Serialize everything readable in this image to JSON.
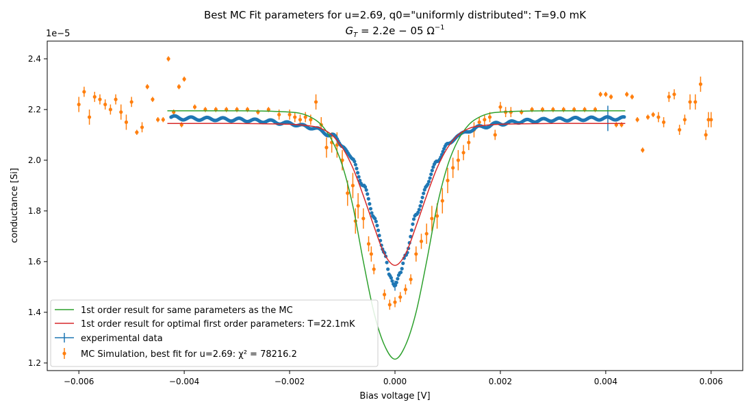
{
  "chart_data": {
    "type": "scatter",
    "title": "Best MC Fit parameters for u=2.69, q0=\"uniformly distributed\":  T=9.0 mK",
    "subtitle_prefix": "G",
    "subtitle_sub": "T",
    "subtitle_mid": " = 2.2e − 05 Ω",
    "subtitle_sup": "−1",
    "xlabel": "Bias voltage [V]",
    "ylabel": "conductance [Si]",
    "y_offset_label": "1e−5",
    "xlim": [
      -0.0066,
      0.0066
    ],
    "ylim": [
      1.17e-05,
      2.47e-05
    ],
    "grid": false,
    "legend_position": "lower-left",
    "x_ticks": [
      -0.006,
      -0.004,
      -0.002,
      0.0,
      0.002,
      0.004,
      0.006
    ],
    "x_tick_labels": [
      "−0.006",
      "−0.004",
      "−0.002",
      "0.000",
      "0.002",
      "0.004",
      "0.006"
    ],
    "y_ticks": [
      1.2e-05,
      1.4e-05,
      1.6e-05,
      1.8e-05,
      2e-05,
      2.2e-05,
      2.4e-05
    ],
    "y_tick_labels": [
      "1.2",
      "1.4",
      "1.6",
      "1.8",
      "2.0",
      "2.2",
      "2.4"
    ],
    "colors": {
      "experimental": "#1f77b4",
      "mc": "#ff7f0e",
      "first_order_same": "#2ca02c",
      "first_order_opt": "#d62728"
    },
    "series": [
      {
        "name": "1st order result for same parameters as the MC",
        "kind": "line",
        "color": "#2ca02c",
        "points": [
          [
            -0.00432,
            2.195e-05
          ],
          [
            -0.004,
            2.195e-05
          ],
          [
            -0.0035,
            2.195e-05
          ],
          [
            -0.003,
            2.195e-05
          ],
          [
            -0.0025,
            2.194e-05
          ],
          [
            -0.002,
            2.19e-05
          ],
          [
            -0.0018,
            2.185e-05
          ],
          [
            -0.0016,
            2.17e-05
          ],
          [
            -0.0014,
            2.14e-05
          ],
          [
            -0.0012,
            2.08e-05
          ],
          [
            -0.001,
            1.98e-05
          ],
          [
            -0.0008,
            1.82e-05
          ],
          [
            -0.0006,
            1.6e-05
          ],
          [
            -0.0004,
            1.4e-05
          ],
          [
            -0.0002,
            1.27e-05
          ],
          [
            0.0,
            1.215e-05
          ],
          [
            0.0002,
            1.27e-05
          ],
          [
            0.0004,
            1.4e-05
          ],
          [
            0.0006,
            1.6e-05
          ],
          [
            0.0008,
            1.82e-05
          ],
          [
            0.001,
            1.98e-05
          ],
          [
            0.0012,
            2.08e-05
          ],
          [
            0.0014,
            2.14e-05
          ],
          [
            0.0016,
            2.17e-05
          ],
          [
            0.0018,
            2.185e-05
          ],
          [
            0.002,
            2.19e-05
          ],
          [
            0.0025,
            2.194e-05
          ],
          [
            0.003,
            2.195e-05
          ],
          [
            0.0035,
            2.195e-05
          ],
          [
            0.004,
            2.195e-05
          ],
          [
            0.00437,
            2.195e-05
          ]
        ]
      },
      {
        "name": "1st order result for optimal first order parameters: T=22.1mK",
        "kind": "line",
        "color": "#d62728",
        "points": [
          [
            -0.00432,
            2.145e-05
          ],
          [
            -0.004,
            2.145e-05
          ],
          [
            -0.003,
            2.145e-05
          ],
          [
            -0.002,
            2.142e-05
          ],
          [
            -0.0016,
            2.135e-05
          ],
          [
            -0.0014,
            2.125e-05
          ],
          [
            -0.0012,
            2.1e-05
          ],
          [
            -0.001,
            2.05e-05
          ],
          [
            -0.0008,
            1.97e-05
          ],
          [
            -0.0006,
            1.86e-05
          ],
          [
            -0.0004,
            1.74e-05
          ],
          [
            -0.0002,
            1.63e-05
          ],
          [
            0.0,
            1.585e-05
          ],
          [
            0.0002,
            1.63e-05
          ],
          [
            0.0004,
            1.74e-05
          ],
          [
            0.0006,
            1.86e-05
          ],
          [
            0.0008,
            1.97e-05
          ],
          [
            0.001,
            2.05e-05
          ],
          [
            0.0012,
            2.1e-05
          ],
          [
            0.0014,
            2.125e-05
          ],
          [
            0.0016,
            2.135e-05
          ],
          [
            0.002,
            2.142e-05
          ],
          [
            0.003,
            2.145e-05
          ],
          [
            0.004,
            2.145e-05
          ],
          [
            0.00437,
            2.145e-05
          ]
        ]
      },
      {
        "name": "experimental data",
        "kind": "errorbar-dense",
        "color": "#1f77b4",
        "x_range": [
          -0.00425,
          0.00435
        ],
        "profile": [
          [
            -0.00425,
            2.17e-05
          ],
          [
            -0.004,
            2.165e-05
          ],
          [
            -0.0035,
            2.163e-05
          ],
          [
            -0.003,
            2.16e-05
          ],
          [
            -0.0025,
            2.155e-05
          ],
          [
            -0.002,
            2.145e-05
          ],
          [
            -0.0016,
            2.13e-05
          ],
          [
            -0.0012,
            2.1e-05
          ],
          [
            -0.001,
            2.06e-05
          ],
          [
            -0.0008,
            2e-05
          ],
          [
            -0.0006,
            1.9e-05
          ],
          [
            -0.0004,
            1.78e-05
          ],
          [
            -0.0002,
            1.63e-05
          ],
          [
            -0.0001,
            1.55e-05
          ],
          [
            0.0,
            1.505e-05
          ],
          [
            0.0001,
            1.55e-05
          ],
          [
            0.0002,
            1.63e-05
          ],
          [
            0.0004,
            1.78e-05
          ],
          [
            0.0006,
            1.9e-05
          ],
          [
            0.0008,
            2e-05
          ],
          [
            0.001,
            2.06e-05
          ],
          [
            0.0012,
            2.1e-05
          ],
          [
            0.0016,
            2.13e-05
          ],
          [
            0.002,
            2.145e-05
          ],
          [
            0.0025,
            2.155e-05
          ],
          [
            0.003,
            2.16e-05
          ],
          [
            0.0035,
            2.163e-05
          ],
          [
            0.004,
            2.165e-05
          ],
          [
            0.00435,
            2.165e-05
          ]
        ]
      },
      {
        "name": "MC Simulation, best fit for u=2.69:  χ² = 78216.2",
        "kind": "errorbar",
        "color": "#ff7f0e",
        "points": [
          [
            -0.006,
            2.22e-05,
            3e-07
          ],
          [
            -0.0059,
            2.27e-05,
            2e-07
          ],
          [
            -0.0058,
            2.17e-05,
            3e-07
          ],
          [
            -0.0057,
            2.25e-05,
            2e-07
          ],
          [
            -0.0056,
            2.24e-05,
            2e-07
          ],
          [
            -0.0055,
            2.22e-05,
            2e-07
          ],
          [
            -0.0054,
            2.2e-05,
            2e-07
          ],
          [
            -0.0053,
            2.24e-05,
            2e-07
          ],
          [
            -0.0052,
            2.19e-05,
            3e-07
          ],
          [
            -0.0051,
            2.15e-05,
            3e-07
          ],
          [
            -0.005,
            2.23e-05,
            2e-07
          ],
          [
            -0.0049,
            2.11e-05,
            1e-07
          ],
          [
            -0.0048,
            2.13e-05,
            2e-07
          ],
          [
            -0.0047,
            2.29e-05,
            1e-07
          ],
          [
            -0.0046,
            2.24e-05,
            1e-07
          ],
          [
            -0.0045,
            2.16e-05,
            1e-07
          ],
          [
            -0.0044,
            2.16e-05,
            1e-07
          ],
          [
            -0.0043,
            2.4e-05,
            1e-07
          ],
          [
            -0.0042,
            2.19e-05,
            1e-07
          ],
          [
            -0.0041,
            2.29e-05,
            1e-07
          ],
          [
            -0.00405,
            2.14e-05,
            1e-07
          ],
          [
            -0.004,
            2.32e-05,
            1e-07
          ],
          [
            -0.0038,
            2.21e-05,
            1e-07
          ],
          [
            -0.0036,
            2.2e-05,
            1e-07
          ],
          [
            -0.0034,
            2.2e-05,
            1e-07
          ],
          [
            -0.0032,
            2.2e-05,
            1e-07
          ],
          [
            -0.003,
            2.2e-05,
            1e-07
          ],
          [
            -0.0028,
            2.2e-05,
            1e-07
          ],
          [
            -0.0026,
            2.19e-05,
            1e-07
          ],
          [
            -0.0024,
            2.2e-05,
            1e-07
          ],
          [
            -0.0022,
            2.18e-05,
            2e-07
          ],
          [
            -0.002,
            2.18e-05,
            2e-07
          ],
          [
            -0.0019,
            2.17e-05,
            2e-07
          ],
          [
            -0.0018,
            2.16e-05,
            2e-07
          ],
          [
            -0.0017,
            2.17e-05,
            2e-07
          ],
          [
            -0.0016,
            2.16e-05,
            2e-07
          ],
          [
            -0.0015,
            2.23e-05,
            3e-07
          ],
          [
            -0.0014,
            2.14e-05,
            3e-07
          ],
          [
            -0.0013,
            2.05e-05,
            4e-07
          ],
          [
            -0.0012,
            2.07e-05,
            4e-07
          ],
          [
            -0.0011,
            2.06e-05,
            5e-07
          ],
          [
            -0.001,
            2e-05,
            4e-07
          ],
          [
            -0.0009,
            1.87e-05,
            5e-07
          ],
          [
            -0.0008,
            1.9e-05,
            5e-07
          ],
          [
            -0.00075,
            1.76e-05,
            5e-07
          ],
          [
            -0.0007,
            1.82e-05,
            5e-07
          ],
          [
            -0.0006,
            1.77e-05,
            4e-07
          ],
          [
            -0.0005,
            1.67e-05,
            3e-07
          ],
          [
            -0.00045,
            1.63e-05,
            3e-07
          ],
          [
            -0.0004,
            1.57e-05,
            2e-07
          ],
          [
            -0.0002,
            1.47e-05,
            2e-07
          ],
          [
            -0.0001,
            1.43e-05,
            2e-07
          ],
          [
            0.0,
            1.44e-05,
            2e-07
          ],
          [
            0.0001,
            1.46e-05,
            2e-07
          ],
          [
            0.0002,
            1.49e-05,
            2e-07
          ],
          [
            0.0003,
            1.53e-05,
            2e-07
          ],
          [
            0.0004,
            1.63e-05,
            3e-07
          ],
          [
            0.0005,
            1.68e-05,
            3e-07
          ],
          [
            0.0006,
            1.71e-05,
            4e-07
          ],
          [
            0.0007,
            1.77e-05,
            5e-07
          ],
          [
            0.0008,
            1.78e-05,
            5e-07
          ],
          [
            0.0009,
            1.84e-05,
            5e-07
          ],
          [
            0.001,
            1.92e-05,
            5e-07
          ],
          [
            0.0011,
            1.97e-05,
            4e-07
          ],
          [
            0.0012,
            2e-05,
            4e-07
          ],
          [
            0.0013,
            2.03e-05,
            3e-07
          ],
          [
            0.0014,
            2.07e-05,
            3e-07
          ],
          [
            0.0015,
            2.12e-05,
            3e-07
          ],
          [
            0.0016,
            2.15e-05,
            2e-07
          ],
          [
            0.0017,
            2.16e-05,
            2e-07
          ],
          [
            0.0018,
            2.17e-05,
            2e-07
          ],
          [
            0.0019,
            2.1e-05,
            2e-07
          ],
          [
            0.002,
            2.21e-05,
            2e-07
          ],
          [
            0.0021,
            2.19e-05,
            2e-07
          ],
          [
            0.0022,
            2.19e-05,
            2e-07
          ],
          [
            0.0024,
            2.19e-05,
            1e-07
          ],
          [
            0.0026,
            2.2e-05,
            1e-07
          ],
          [
            0.0028,
            2.2e-05,
            1e-07
          ],
          [
            0.003,
            2.2e-05,
            1e-07
          ],
          [
            0.0032,
            2.2e-05,
            1e-07
          ],
          [
            0.0034,
            2.2e-05,
            1e-07
          ],
          [
            0.0036,
            2.2e-05,
            1e-07
          ],
          [
            0.0038,
            2.2e-05,
            1e-07
          ],
          [
            0.0039,
            2.26e-05,
            1e-07
          ],
          [
            0.004,
            2.26e-05,
            1e-07
          ],
          [
            0.0041,
            2.25e-05,
            1e-07
          ],
          [
            0.0042,
            2.14e-05,
            1e-07
          ],
          [
            0.0043,
            2.14e-05,
            1e-07
          ],
          [
            0.0044,
            2.26e-05,
            1e-07
          ],
          [
            0.0045,
            2.25e-05,
            1e-07
          ],
          [
            0.0046,
            2.16e-05,
            1e-07
          ],
          [
            0.0047,
            2.04e-05,
            1e-07
          ],
          [
            0.0048,
            2.17e-05,
            1e-07
          ],
          [
            0.0049,
            2.18e-05,
            1e-07
          ],
          [
            0.005,
            2.17e-05,
            2e-07
          ],
          [
            0.0051,
            2.15e-05,
            2e-07
          ],
          [
            0.0052,
            2.25e-05,
            2e-07
          ],
          [
            0.0053,
            2.26e-05,
            2e-07
          ],
          [
            0.0054,
            2.12e-05,
            2e-07
          ],
          [
            0.0055,
            2.16e-05,
            2e-07
          ],
          [
            0.0056,
            2.23e-05,
            3e-07
          ],
          [
            0.0057,
            2.23e-05,
            3e-07
          ],
          [
            0.0058,
            2.3e-05,
            3e-07
          ],
          [
            0.0059,
            2.1e-05,
            2e-07
          ],
          [
            0.006,
            2.16e-05,
            3e-07
          ],
          [
            0.00595,
            2.16e-05,
            3e-07
          ]
        ]
      }
    ]
  }
}
